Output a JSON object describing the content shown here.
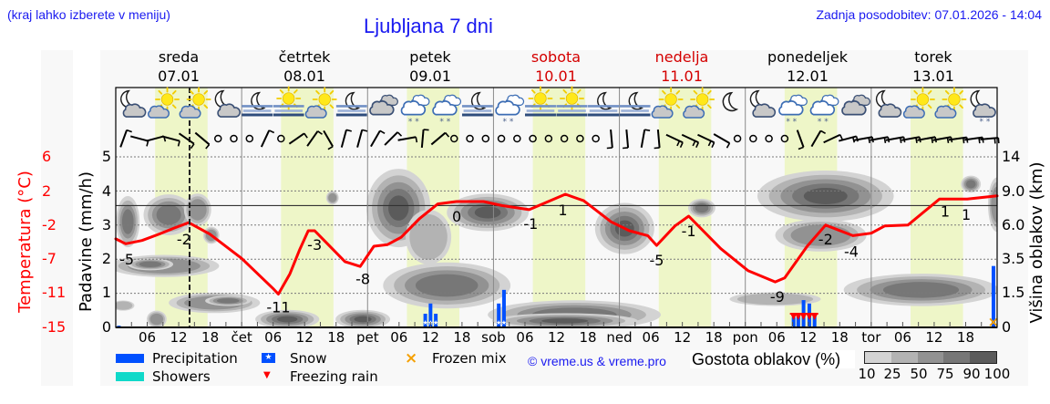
{
  "header": {
    "hint": "(kraj lahko izberete v meniju)",
    "title": "Ljubljana 7 dni",
    "updated": "Zadnja posodobitev: 07.01.2026 - 14:04"
  },
  "days": [
    {
      "name": "sreda",
      "date": "07.01",
      "weekend": false
    },
    {
      "name": "četrtek",
      "date": "08.01",
      "weekend": false
    },
    {
      "name": "petek",
      "date": "09.01",
      "weekend": false
    },
    {
      "name": "sobota",
      "date": "10.01",
      "weekend": true
    },
    {
      "name": "nedelja",
      "date": "11.01",
      "weekend": true
    },
    {
      "name": "ponedeljek",
      "date": "12.01",
      "weekend": false
    },
    {
      "name": "torek",
      "date": "13.01",
      "weekend": false
    }
  ],
  "legend": {
    "precipitation": "Precipitation",
    "showers": "Showers",
    "snow": "Snow",
    "freezing_rain": "Freezing rain",
    "frozen_mix": "Frozen mix",
    "cloud_density_title": "Gostota oblakov (%)",
    "cloud_density_scale": [
      "10",
      "25",
      "50",
      "75",
      "90",
      "100"
    ],
    "snow_glyph": "★",
    "freezing_glyph": "▼",
    "frozen_mix_glyph": "×"
  },
  "credit": "© vreme.us & vreme.pro",
  "colors": {
    "link_blue": "#1a1af0",
    "weekend": "#d40000",
    "temperature": "#ff0000",
    "precipitation": "#0050ff",
    "showers": "#10d9c9",
    "freezing_rain": "#ff0000",
    "frozen_mix": "#f5a000",
    "daylight": "#eef6c8",
    "cloud_density": [
      "#d3d3d3",
      "#b3b3b3",
      "#929292",
      "#777777",
      "#5b5b5b"
    ]
  },
  "chart_data": {
    "type": "line",
    "title": "Ljubljana 7 dni",
    "x_range": [
      0,
      168
    ],
    "now_h": 14.07,
    "x_ticks": [
      {
        "h": 6,
        "label": "06"
      },
      {
        "h": 12,
        "label": "12"
      },
      {
        "h": 18,
        "label": "18"
      },
      {
        "h": 24,
        "label": "čet"
      },
      {
        "h": 30,
        "label": "06"
      },
      {
        "h": 36,
        "label": "12"
      },
      {
        "h": 42,
        "label": "18"
      },
      {
        "h": 48,
        "label": "pet"
      },
      {
        "h": 54,
        "label": "06"
      },
      {
        "h": 60,
        "label": "12"
      },
      {
        "h": 66,
        "label": "18"
      },
      {
        "h": 72,
        "label": "sob"
      },
      {
        "h": 78,
        "label": "06"
      },
      {
        "h": 84,
        "label": "12"
      },
      {
        "h": 90,
        "label": "18"
      },
      {
        "h": 96,
        "label": "ned"
      },
      {
        "h": 102,
        "label": "06"
      },
      {
        "h": 108,
        "label": "12"
      },
      {
        "h": 114,
        "label": "18"
      },
      {
        "h": 120,
        "label": "pon"
      },
      {
        "h": 126,
        "label": "06"
      },
      {
        "h": 132,
        "label": "12"
      },
      {
        "h": 138,
        "label": "18"
      },
      {
        "h": 144,
        "label": "tor"
      },
      {
        "h": 150,
        "label": "06"
      },
      {
        "h": 156,
        "label": "12"
      },
      {
        "h": 162,
        "label": "18"
      }
    ],
    "daylight": [
      [
        7.5,
        17.5
      ],
      [
        31.5,
        41.5
      ],
      [
        55.5,
        65.5
      ],
      [
        79.5,
        89.5
      ],
      [
        103.5,
        113.5
      ],
      [
        127.5,
        137.5
      ],
      [
        151.5,
        161.5
      ]
    ],
    "axes": {
      "temperature": {
        "label": "Temperatura (°C)",
        "ticks": [
          "6",
          "2",
          "-2",
          "-7",
          "-11",
          "-15"
        ],
        "max": 6,
        "min": -15
      },
      "precipitation": {
        "label": "Padavine (mm/h)",
        "ticks": [
          "5",
          "4",
          "3",
          "2",
          "1",
          "0"
        ],
        "max": 5,
        "min": 0
      },
      "cloud_height": {
        "label": "Višina oblakov (km)",
        "ticks": [
          "14",
          "9.0",
          "6.0",
          "3.5",
          "1.5",
          "0"
        ]
      }
    },
    "series": [
      {
        "name": "Temperatura (°C)",
        "type": "line",
        "points": [
          [
            0,
            -4.1
          ],
          [
            1.9,
            -4.7
          ],
          [
            5,
            -4.3
          ],
          [
            8.3,
            -3.5
          ],
          [
            11,
            -2.8
          ],
          [
            13.9,
            -2.1
          ],
          [
            17.9,
            -3.5
          ],
          [
            24,
            -6.5
          ],
          [
            30.1,
            -10.3
          ],
          [
            31,
            -10.9
          ],
          [
            33.2,
            -8.4
          ],
          [
            35,
            -5.5
          ],
          [
            36.7,
            -3.1
          ],
          [
            37.9,
            -3.1
          ],
          [
            40.5,
            -4.8
          ],
          [
            43.7,
            -6.9
          ],
          [
            46.6,
            -7.5
          ],
          [
            49.2,
            -5.0
          ],
          [
            51.8,
            -4.8
          ],
          [
            54.4,
            -3.9
          ],
          [
            57.9,
            -1.6
          ],
          [
            61.4,
            0.2
          ],
          [
            64.9,
            0.5
          ],
          [
            70.1,
            0.5
          ],
          [
            73.6,
            0.0
          ],
          [
            78.8,
            -0.5
          ],
          [
            85.7,
            1.4
          ],
          [
            89.2,
            0.6
          ],
          [
            94.4,
            -2.0
          ],
          [
            97.9,
            -3.1
          ],
          [
            101.4,
            -3.7
          ],
          [
            103.1,
            -4.9
          ],
          [
            106.6,
            -2.5
          ],
          [
            109.2,
            -1.3
          ],
          [
            115.3,
            -5.3
          ],
          [
            120.5,
            -8.0
          ],
          [
            125.7,
            -9.4
          ],
          [
            127.5,
            -8.9
          ],
          [
            131.8,
            -5.0
          ],
          [
            135.3,
            -2.4
          ],
          [
            140.5,
            -3.7
          ],
          [
            144,
            -3.4
          ],
          [
            146.6,
            -2.5
          ],
          [
            151,
            -2.4
          ],
          [
            157,
            0.8
          ],
          [
            162.3,
            0.8
          ],
          [
            168,
            1.2
          ]
        ]
      },
      {
        "name": "Padavine (mm/h)",
        "type": "bar",
        "points": [
          {
            "h": 0.6,
            "mm": 0.05,
            "kind": "rain"
          },
          {
            "h": 59,
            "mm": 0.4,
            "kind": "snow"
          },
          {
            "h": 60,
            "mm": 0.7,
            "kind": "snow"
          },
          {
            "h": 61,
            "mm": 0.4,
            "kind": "snow"
          },
          {
            "h": 73,
            "mm": 0.7,
            "kind": "snow"
          },
          {
            "h": 74,
            "mm": 1.1,
            "kind": "snow"
          },
          {
            "h": 129.2,
            "mm": 0.3,
            "kind": "freezing-rain"
          },
          {
            "h": 130.1,
            "mm": 0.4,
            "kind": "freezing-rain"
          },
          {
            "h": 131.1,
            "mm": 0.8,
            "kind": "freezing-rain"
          },
          {
            "h": 132.2,
            "mm": 0.7,
            "kind": "freezing-rain"
          },
          {
            "h": 133.2,
            "mm": 0.4,
            "kind": "freezing-rain"
          },
          {
            "h": 167.3,
            "mm": 1.8,
            "kind": "frozen-mix"
          }
        ]
      }
    ],
    "temperature_labels": [
      {
        "h": 2.1,
        "y": -6.6,
        "text": "-5"
      },
      {
        "h": 13.0,
        "y": -4.1,
        "text": "-2"
      },
      {
        "h": 31.0,
        "y": -12.5,
        "text": "-11"
      },
      {
        "h": 37.9,
        "y": -4.8,
        "text": "-3"
      },
      {
        "h": 47.1,
        "y": -9.0,
        "text": "-8"
      },
      {
        "h": 65.0,
        "y": -1.3,
        "text": "0"
      },
      {
        "h": 79.1,
        "y": -2.2,
        "text": "-1"
      },
      {
        "h": 85.2,
        "y": -0.5,
        "text": "1"
      },
      {
        "h": 103.1,
        "y": -6.7,
        "text": "-5"
      },
      {
        "h": 109.2,
        "y": -3.1,
        "text": "-1"
      },
      {
        "h": 126.1,
        "y": -11.2,
        "text": "-9"
      },
      {
        "h": 135.3,
        "y": -4.1,
        "text": "-2"
      },
      {
        "h": 140.2,
        "y": -5.6,
        "text": "-4"
      },
      {
        "h": 158.1,
        "y": -0.7,
        "text": "1"
      },
      {
        "h": 162.1,
        "y": -1.1,
        "text": "1"
      }
    ],
    "cloud_density": {
      "levels": [
        10,
        25,
        50,
        75,
        90
      ],
      "blobs": [
        {
          "h": 2.3,
          "u": 3.1,
          "w": 4.5,
          "hgt": 1.5,
          "d": 75
        },
        {
          "h": 10.1,
          "u": 3.3,
          "w": 9.6,
          "hgt": 1.2,
          "d": 75
        },
        {
          "h": 15.6,
          "u": 3.45,
          "w": 5.2,
          "hgt": 0.95,
          "d": 50
        },
        {
          "h": 18.2,
          "u": 2.7,
          "w": 3.1,
          "hgt": 0.5,
          "d": 50
        },
        {
          "h": 9.2,
          "u": 1.8,
          "w": 21,
          "hgt": 0.65,
          "d": 50
        },
        {
          "h": 6.6,
          "u": 1.85,
          "w": 8.7,
          "hgt": 0.35,
          "d": 75
        },
        {
          "h": 18.8,
          "u": 0.72,
          "w": 17.4,
          "hgt": 0.6,
          "d": 50
        },
        {
          "h": 21.4,
          "u": 0.78,
          "w": 8.7,
          "hgt": 0.3,
          "d": 75
        },
        {
          "h": 1.4,
          "u": 0.64,
          "w": 4.3,
          "hgt": 0.3,
          "d": 25
        },
        {
          "h": 7.8,
          "u": 0.24,
          "w": 3.8,
          "hgt": 0.5,
          "d": 50
        },
        {
          "h": 32.7,
          "u": 0.24,
          "w": 12.2,
          "hgt": 0.55,
          "d": 90
        },
        {
          "h": 47.1,
          "u": 0.24,
          "w": 10.4,
          "hgt": 0.55,
          "d": 90
        },
        {
          "h": 41.3,
          "u": 3.8,
          "w": 2.4,
          "hgt": 0.4,
          "d": 50
        },
        {
          "h": 53.9,
          "u": 3.5,
          "w": 12.2,
          "hgt": 2.3,
          "d": 90
        },
        {
          "h": 70.9,
          "u": 3.37,
          "w": 15.6,
          "hgt": 1.1,
          "d": 90
        },
        {
          "h": 59.6,
          "u": 2.65,
          "w": 8.7,
          "hgt": 1.6,
          "d": 25
        },
        {
          "h": 63.1,
          "u": 1.23,
          "w": 24.3,
          "hgt": 1.35,
          "d": 75
        },
        {
          "h": 87.4,
          "u": 0.37,
          "w": 33,
          "hgt": 0.85,
          "d": 75
        },
        {
          "h": 85.6,
          "u": 0.19,
          "w": 27.8,
          "hgt": 0.45,
          "d": 90
        },
        {
          "h": 97,
          "u": 2.9,
          "w": 11.3,
          "hgt": 1.5,
          "d": 90
        },
        {
          "h": 111.7,
          "u": 3.5,
          "w": 5.2,
          "hgt": 0.55,
          "d": 75
        },
        {
          "h": 125.7,
          "u": 0.83,
          "w": 17.4,
          "hgt": 0.4,
          "d": 25
        },
        {
          "h": 135.3,
          "u": 3.85,
          "w": 26,
          "hgt": 1.5,
          "d": 90
        },
        {
          "h": 134.4,
          "u": 2.7,
          "w": 17.4,
          "hgt": 0.95,
          "d": 50
        },
        {
          "h": 153.5,
          "u": 1.1,
          "w": 29.5,
          "hgt": 0.95,
          "d": 75
        },
        {
          "h": 163,
          "u": 4.2,
          "w": 3.8,
          "hgt": 0.5,
          "d": 75
        },
        {
          "h": 168,
          "u": 3.6,
          "w": 3.5,
          "hgt": 1.6,
          "d": 50
        }
      ]
    },
    "weather_icons": [
      "moon-cloud",
      "sun-cloud",
      "sun-cloud",
      "moon-cloud",
      "moon-fog",
      "sun-fog",
      "sun-cloud",
      "moon-fog",
      "cloud",
      "cloud-snow",
      "cloud-snow",
      "moon-fog",
      "cloud-snow",
      "sun-fog",
      "sun-fog",
      "moon-fog",
      "moon-fog",
      "sun-cloud",
      "sun-cloud",
      "moon",
      "moon-cloud",
      "cloud-snow",
      "cloud-snow",
      "cloud",
      "moon-cloud",
      "sun-cloud",
      "sun-cloud",
      "moon-cloud-snow"
    ],
    "wind_barbs": [
      {
        "a": -70,
        "f": 1
      },
      {
        "a": 15,
        "f": 1
      },
      {
        "a": -15,
        "f": 1
      },
      {
        "a": 15,
        "f": 1
      },
      {
        "a": 35,
        "f": 1
      },
      {
        "a": 40,
        "f": 1
      },
      {
        "calm": true
      },
      {
        "calm": true
      },
      {
        "calm": true
      },
      {
        "a": -65,
        "f": 1
      },
      {
        "calm": true
      },
      {
        "a": -35,
        "f": 1
      },
      {
        "a": -55,
        "f": 1
      },
      {
        "a": 60,
        "f": 1
      },
      {
        "a": -75,
        "f": 1
      },
      {
        "a": -75,
        "f": 1
      },
      {
        "a": -60,
        "f": 1
      },
      {
        "a": -45,
        "f": 1
      },
      {
        "a": -10,
        "f": 1
      },
      {
        "a": -85,
        "f": 1
      },
      {
        "a": -40,
        "f": 1
      },
      {
        "calm": true
      },
      {
        "calm": true
      },
      {
        "calm": true
      },
      {
        "calm": true
      },
      {
        "calm": true
      },
      {
        "calm": true
      },
      {
        "calm": true
      },
      {
        "calm": true
      },
      {
        "calm": true
      },
      {
        "calm": true
      },
      {
        "a": 85,
        "f": 1
      },
      {
        "a": 85,
        "f": 1
      },
      {
        "a": -80,
        "f": 1
      },
      {
        "a": 85,
        "f": 1
      },
      {
        "a": 25,
        "f": 2
      },
      {
        "a": 25,
        "f": 2
      },
      {
        "a": 25,
        "f": 2
      },
      {
        "a": 30,
        "f": 1
      },
      {
        "calm": true
      },
      {
        "calm": true
      },
      {
        "calm": true
      },
      {
        "calm": true
      },
      {
        "a": 70,
        "f": 1
      },
      {
        "a": -60,
        "f": 1
      },
      {
        "a": -25,
        "f": 1
      },
      {
        "a": -15,
        "f": 2
      },
      {
        "a": -10,
        "f": 2
      },
      {
        "a": -10,
        "f": 2
      },
      {
        "a": -10,
        "f": 2
      },
      {
        "a": -10,
        "f": 2
      },
      {
        "a": -10,
        "f": 2
      },
      {
        "a": -10,
        "f": 2
      },
      {
        "a": -8,
        "f": 2
      },
      {
        "a": -8,
        "f": 2
      },
      {
        "a": -5,
        "f": 2
      }
    ]
  }
}
